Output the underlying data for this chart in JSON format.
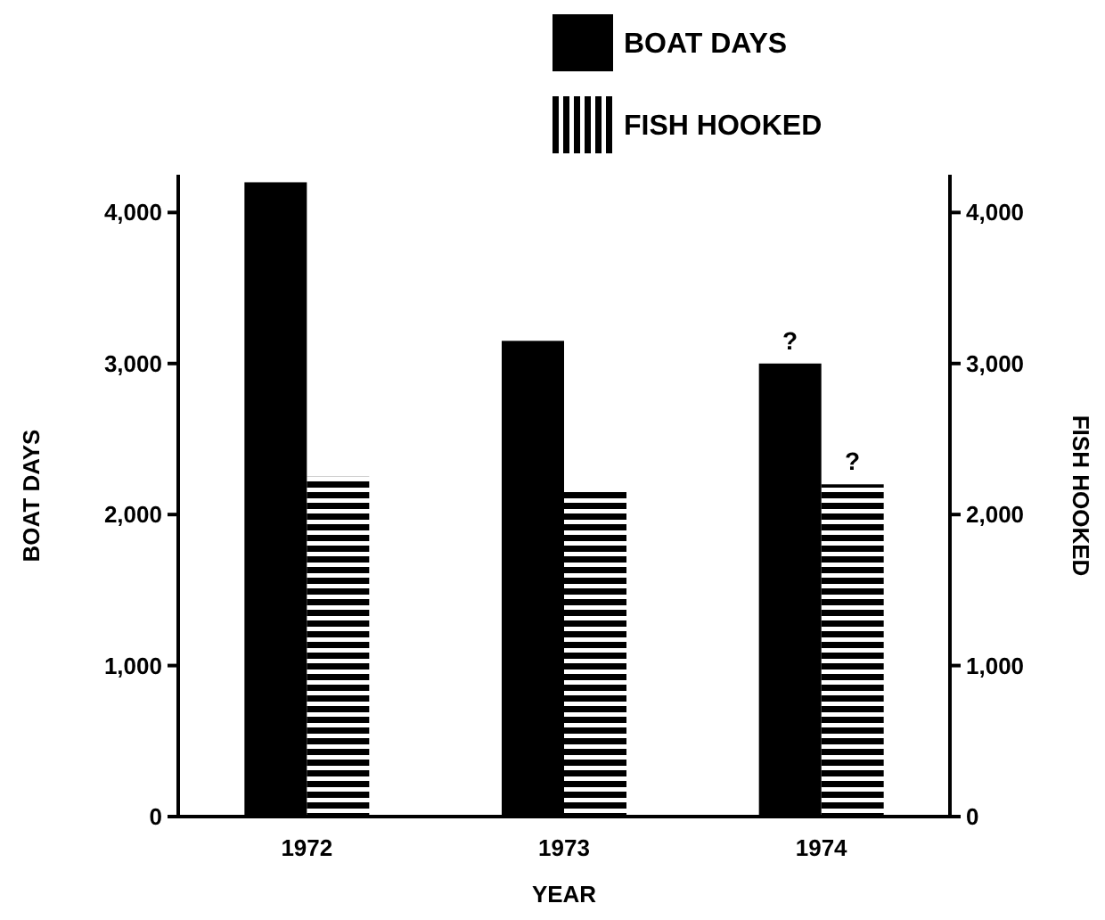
{
  "chart_data": {
    "type": "bar",
    "xlabel": "YEAR",
    "ylabel": "BOAT DAYS",
    "y2label": "FISH HOOKED",
    "categories": [
      "1972",
      "1973",
      "1974"
    ],
    "series": [
      {
        "name": "BOAT DAYS",
        "color": "#000000",
        "values": [
          4200,
          3150,
          3000
        ]
      },
      {
        "name": "FISH HOOKED",
        "color": "#000000",
        "values": [
          2250,
          2150,
          2200
        ],
        "axis": "y2"
      }
    ],
    "ylim": [
      0,
      4250
    ],
    "yticks": [
      0,
      {
        "value": 1000,
        "label": "1,000"
      },
      {
        "value": 2000,
        "label": "2,000"
      },
      {
        "value": 3000,
        "label": "3,000"
      },
      {
        "value": 4000,
        "label": "4,000"
      }
    ],
    "y2lim": [
      0,
      4250
    ],
    "y2ticks": [
      0,
      {
        "value": 1000,
        "label": "1,000"
      },
      {
        "value": 2000,
        "label": "2,000"
      },
      {
        "value": 3000,
        "label": "3,000"
      },
      {
        "value": 4000,
        "label": "4,000"
      }
    ],
    "annotations": [
      {
        "text": "?",
        "x": "1974",
        "y": 3000
      },
      {
        "text": "?",
        "x": "1974",
        "y": 2200
      }
    ],
    "legend": "top",
    "grid": false
  }
}
